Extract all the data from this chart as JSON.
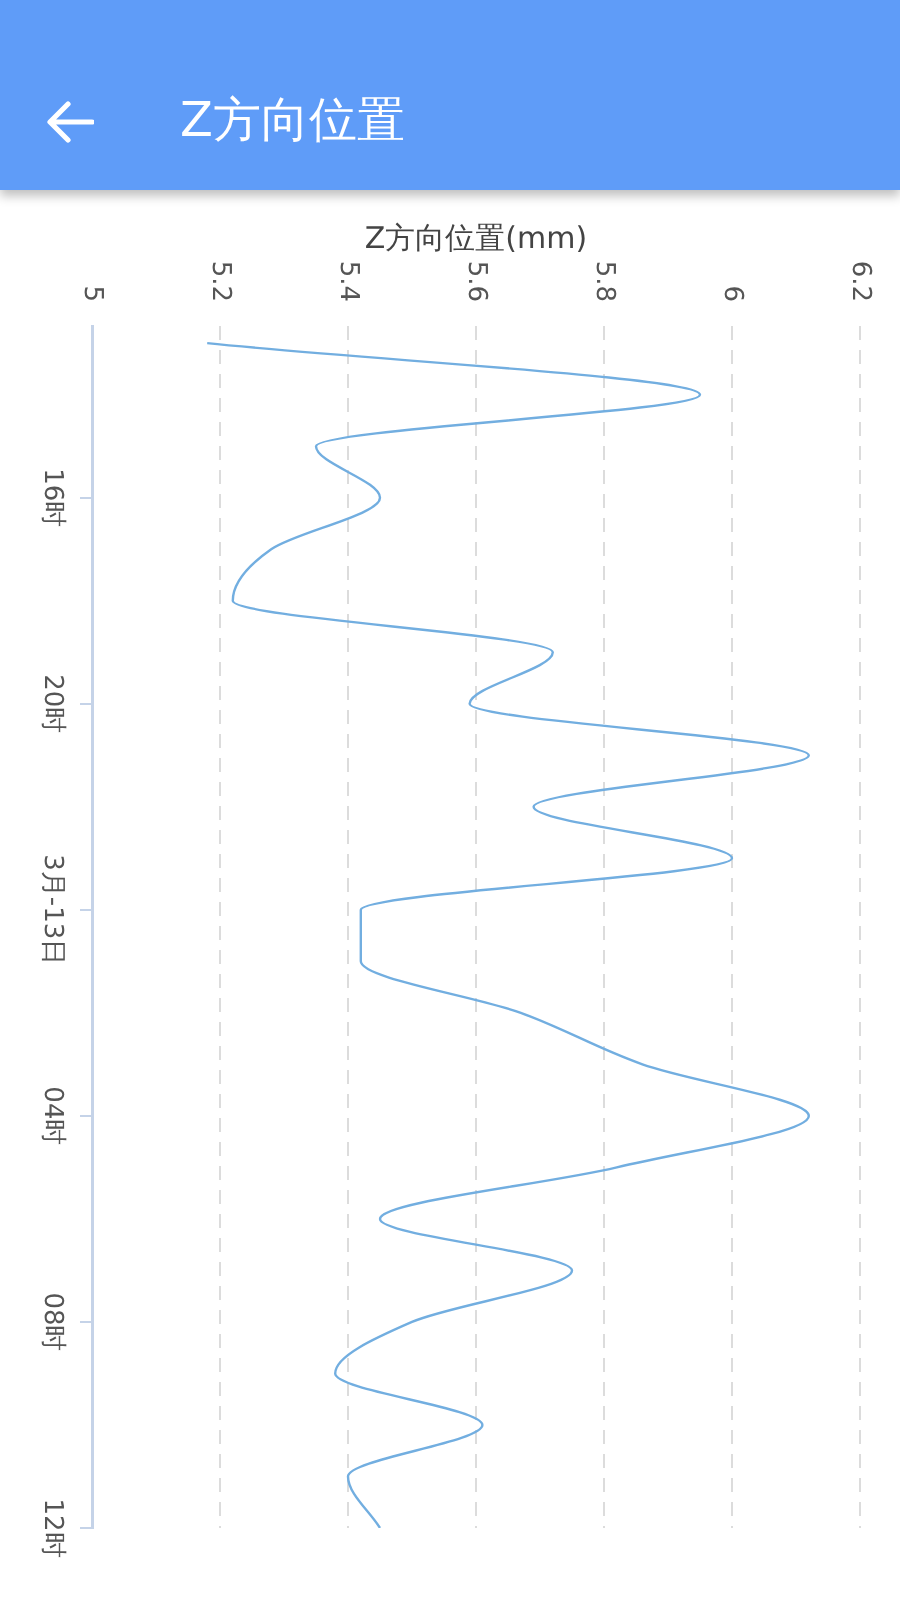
{
  "chart_data": {
    "type": "line",
    "title": "Z方向位置",
    "xlabel": "Z方向位置(mm)",
    "orientation": "horizontal",
    "x": [
      "--03-12T13:00",
      "--03-12T14:00",
      "--03-12T15:00",
      "--03-12T16:00",
      "--03-12T17:00",
      "--03-12T18:00",
      "--03-12T19:00",
      "--03-12T20:00",
      "--03-12T21:00",
      "--03-12T22:00",
      "--03-12T23:00",
      "--03-13T00:00",
      "--03-13T01:00",
      "--03-13T02:00",
      "--03-13T03:00",
      "--03-13T04:00",
      "--03-13T05:00",
      "--03-13T06:00",
      "--03-13T07:00",
      "--03-13T08:00",
      "--03-13T09:00",
      "--03-13T10:00",
      "--03-13T11:00",
      "--03-13T12:00"
    ],
    "values": [
      5.18,
      5.95,
      5.35,
      5.45,
      5.28,
      5.22,
      5.72,
      5.59,
      6.12,
      5.69,
      6.0,
      5.42,
      5.42,
      5.67,
      5.86,
      6.12,
      5.82,
      5.45,
      5.75,
      5.5,
      5.38,
      5.61,
      5.4,
      5.45
    ],
    "color": "#72aee0",
    "xlim": [
      5,
      6.2
    ],
    "xticks": [
      5,
      5.2,
      5.4,
      5.6,
      5.8,
      6,
      6.2
    ],
    "ylim": [
      "--03-13T12:00",
      "--03-12T12:40"
    ],
    "yticks": [
      {
        "value": "--03-12T16:00",
        "label": "16时"
      },
      {
        "value": "--03-12T20:00",
        "label": "20时"
      },
      {
        "value": "--03-13T00:00",
        "label": "3月-13日"
      },
      {
        "value": "--03-13T04:00",
        "label": "04时"
      },
      {
        "value": "--03-13T08:00",
        "label": "08时"
      },
      {
        "value": "--03-13T12:00",
        "label": "12时"
      }
    ],
    "grid": "x",
    "legend": false,
    "marker": "none",
    "line_style": "solid"
  }
}
